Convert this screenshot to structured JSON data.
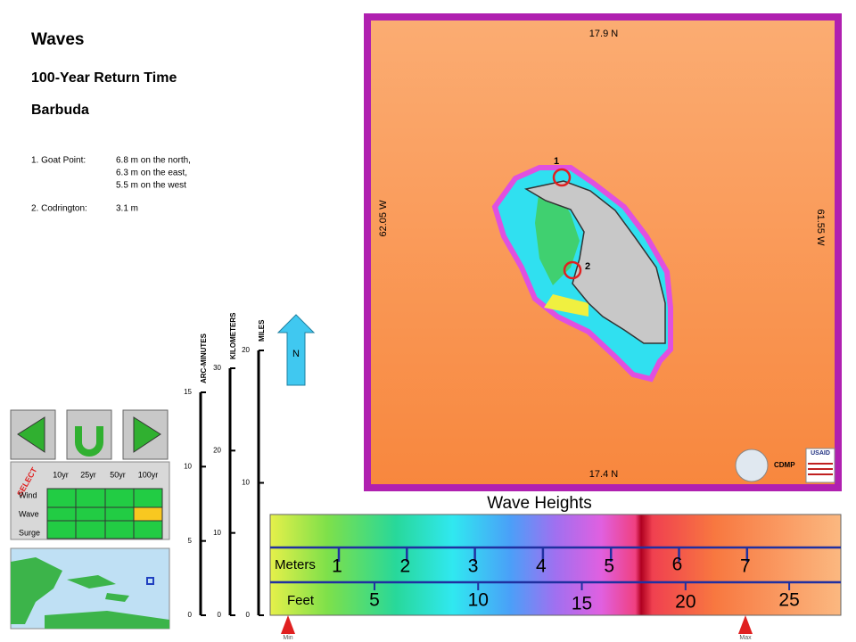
{
  "header": {
    "title": "Waves",
    "subtitle": "100-Year Return Time",
    "location": "Barbuda"
  },
  "sites": [
    {
      "label": "1. Goat Point:",
      "lines": [
        "6.8 m on the north,",
        "6.3 m on the east,",
        "5.5 m on the west"
      ]
    },
    {
      "label": "2. Codrington:",
      "lines": [
        "3.1 m"
      ]
    }
  ],
  "map": {
    "top": "17.9 N",
    "bottom": "17.4 N",
    "left": "62.05 W",
    "right": "61.55 W",
    "markers": [
      "1",
      "2"
    ],
    "logos": [
      "CDMP",
      "USAID"
    ]
  },
  "scales": [
    {
      "label": "ARC-MINUTES",
      "ticks": [
        0,
        5,
        10,
        15
      ]
    },
    {
      "label": "KILOMETERS",
      "ticks": [
        0,
        10,
        20,
        30
      ]
    },
    {
      "label": "MILES",
      "ticks": [
        0,
        10,
        20
      ]
    }
  ],
  "north": "N",
  "selector": {
    "title": "SELECT",
    "columns": [
      "10yr",
      "25yr",
      "50yr",
      "100yr"
    ],
    "rows": [
      "Wind",
      "Wave",
      "Surge"
    ]
  },
  "legend": {
    "title": "Wave Heights",
    "meters_label": "Meters",
    "meters": [
      1,
      2,
      3,
      4,
      5,
      6,
      7
    ],
    "feet_label": "Feet",
    "feet": [
      5,
      10,
      15,
      20,
      25
    ],
    "min": "Min",
    "max": "Max"
  }
}
